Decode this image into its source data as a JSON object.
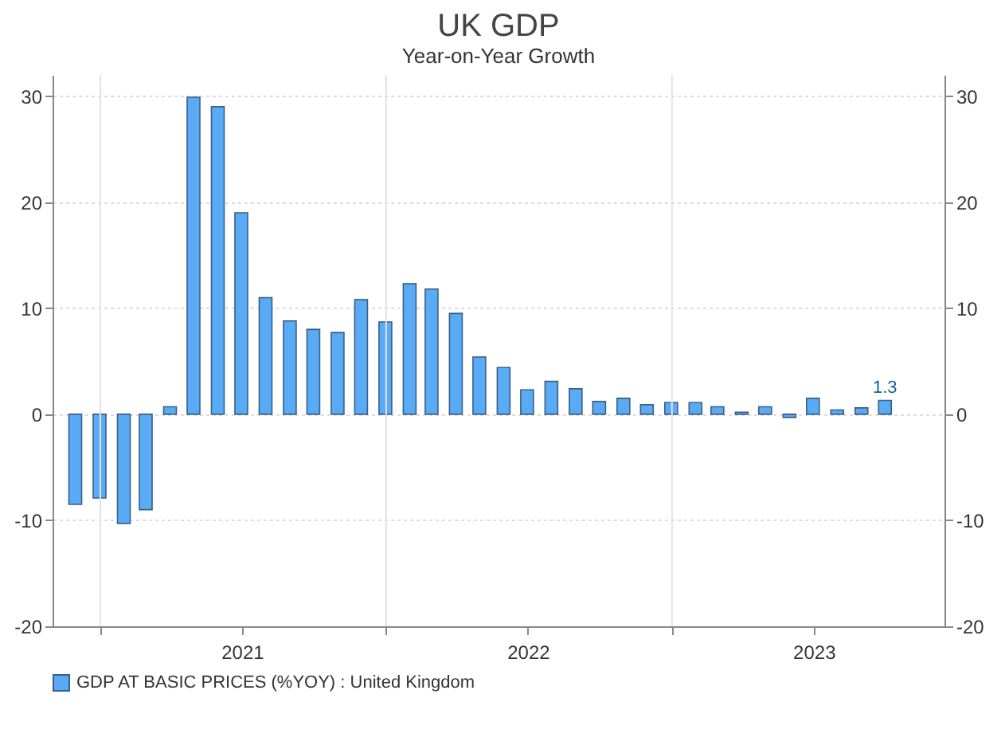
{
  "chart_data": {
    "type": "bar",
    "title": "UK GDP",
    "subtitle": "Year-on-Year Growth",
    "x": [
      "2020-11-30",
      "2020-12-31",
      "2021-01-31",
      "2021-02-28",
      "2021-03-31",
      "2021-04-30",
      "2021-05-31",
      "2021-06-30",
      "2021-07-31",
      "2021-08-31",
      "2021-09-30",
      "2021-10-31",
      "2021-11-30",
      "2021-12-31",
      "2022-01-31",
      "2022-02-28",
      "2022-03-31",
      "2022-04-30",
      "2022-05-31",
      "2022-06-30",
      "2022-07-31",
      "2022-08-31",
      "2022-09-30",
      "2022-10-31",
      "2022-11-30",
      "2022-12-31",
      "2023-01-31",
      "2023-02-28",
      "2023-03-31",
      "2023-04-30",
      "2023-05-31",
      "2023-06-30",
      "2023-07-31",
      "2023-08-31",
      "2023-09-30"
    ],
    "series": [
      {
        "name": "GDP AT BASIC PRICES (%YOY) : United Kingdom",
        "color": "#5aabf5",
        "values": [
          -8.5,
          -7.9,
          -10.3,
          -9.0,
          0.7,
          29.9,
          29.0,
          19.0,
          11.0,
          8.8,
          8.0,
          7.7,
          10.8,
          8.7,
          12.3,
          11.8,
          9.5,
          5.4,
          4.4,
          2.3,
          3.1,
          2.4,
          1.2,
          1.5,
          0.9,
          1.1,
          1.1,
          0.7,
          0.2,
          0.7,
          -0.3,
          1.5,
          0.4,
          0.6,
          1.3
        ],
        "value_labels": [
          null,
          null,
          null,
          null,
          null,
          null,
          null,
          null,
          null,
          null,
          null,
          null,
          null,
          null,
          null,
          null,
          null,
          null,
          null,
          null,
          null,
          null,
          null,
          null,
          null,
          null,
          null,
          null,
          null,
          null,
          null,
          null,
          null,
          null,
          "1.3"
        ]
      }
    ],
    "xlim": [
      "2020-11-01",
      "2023-12-15"
    ],
    "xticks": [
      {
        "value": "2021-01-01",
        "label": null
      },
      {
        "value": "2021-07-01",
        "label": "2021"
      },
      {
        "value": "2022-01-01",
        "label": null
      },
      {
        "value": "2022-07-01",
        "label": "2022"
      },
      {
        "value": "2023-01-01",
        "label": null
      },
      {
        "value": "2023-07-01",
        "label": "2023"
      }
    ],
    "ylim": [
      -20,
      32
    ],
    "yticks": [
      -20,
      -10,
      0,
      10,
      20,
      30
    ],
    "y2lim": [
      -20,
      32
    ],
    "y2ticks": [
      -20,
      -10,
      0,
      10,
      20,
      30
    ],
    "grid": true,
    "legend": "bottom left"
  }
}
